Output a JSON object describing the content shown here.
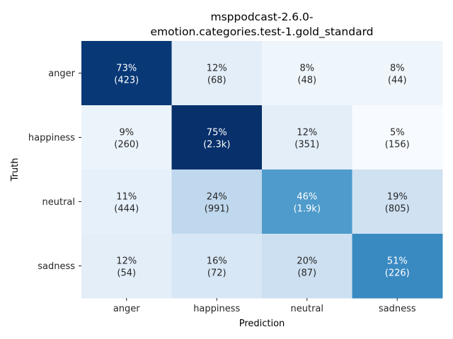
{
  "chart_data": {
    "type": "heatmap",
    "title_lines": [
      "msppodcast-2.6.0-",
      "emotion.categories.test-1.gold_standard"
    ],
    "xlabel": "Prediction",
    "ylabel": "Truth",
    "x_categories": [
      "anger",
      "happiness",
      "neutral",
      "sadness"
    ],
    "y_categories": [
      "anger",
      "happiness",
      "neutral",
      "sadness"
    ],
    "percent_values": [
      [
        73,
        12,
        8,
        8
      ],
      [
        9,
        75,
        12,
        5
      ],
      [
        11,
        24,
        46,
        19
      ],
      [
        12,
        16,
        20,
        51
      ]
    ],
    "cell_labels": [
      [
        {
          "pct": "73%",
          "count": "(423)"
        },
        {
          "pct": "12%",
          "count": "(68)"
        },
        {
          "pct": "8%",
          "count": "(48)"
        },
        {
          "pct": "8%",
          "count": "(44)"
        }
      ],
      [
        {
          "pct": "9%",
          "count": "(260)"
        },
        {
          "pct": "75%",
          "count": "(2.3k)"
        },
        {
          "pct": "12%",
          "count": "(351)"
        },
        {
          "pct": "5%",
          "count": "(156)"
        }
      ],
      [
        {
          "pct": "11%",
          "count": "(444)"
        },
        {
          "pct": "24%",
          "count": "(991)"
        },
        {
          "pct": "46%",
          "count": "(1.9k)"
        },
        {
          "pct": "19%",
          "count": "(805)"
        }
      ],
      [
        {
          "pct": "12%",
          "count": "(54)"
        },
        {
          "pct": "16%",
          "count": "(72)"
        },
        {
          "pct": "20%",
          "count": "(87)"
        },
        {
          "pct": "51%",
          "count": "(226)"
        }
      ]
    ],
    "colormap": "Blues",
    "colorbar": false,
    "grid": false
  }
}
